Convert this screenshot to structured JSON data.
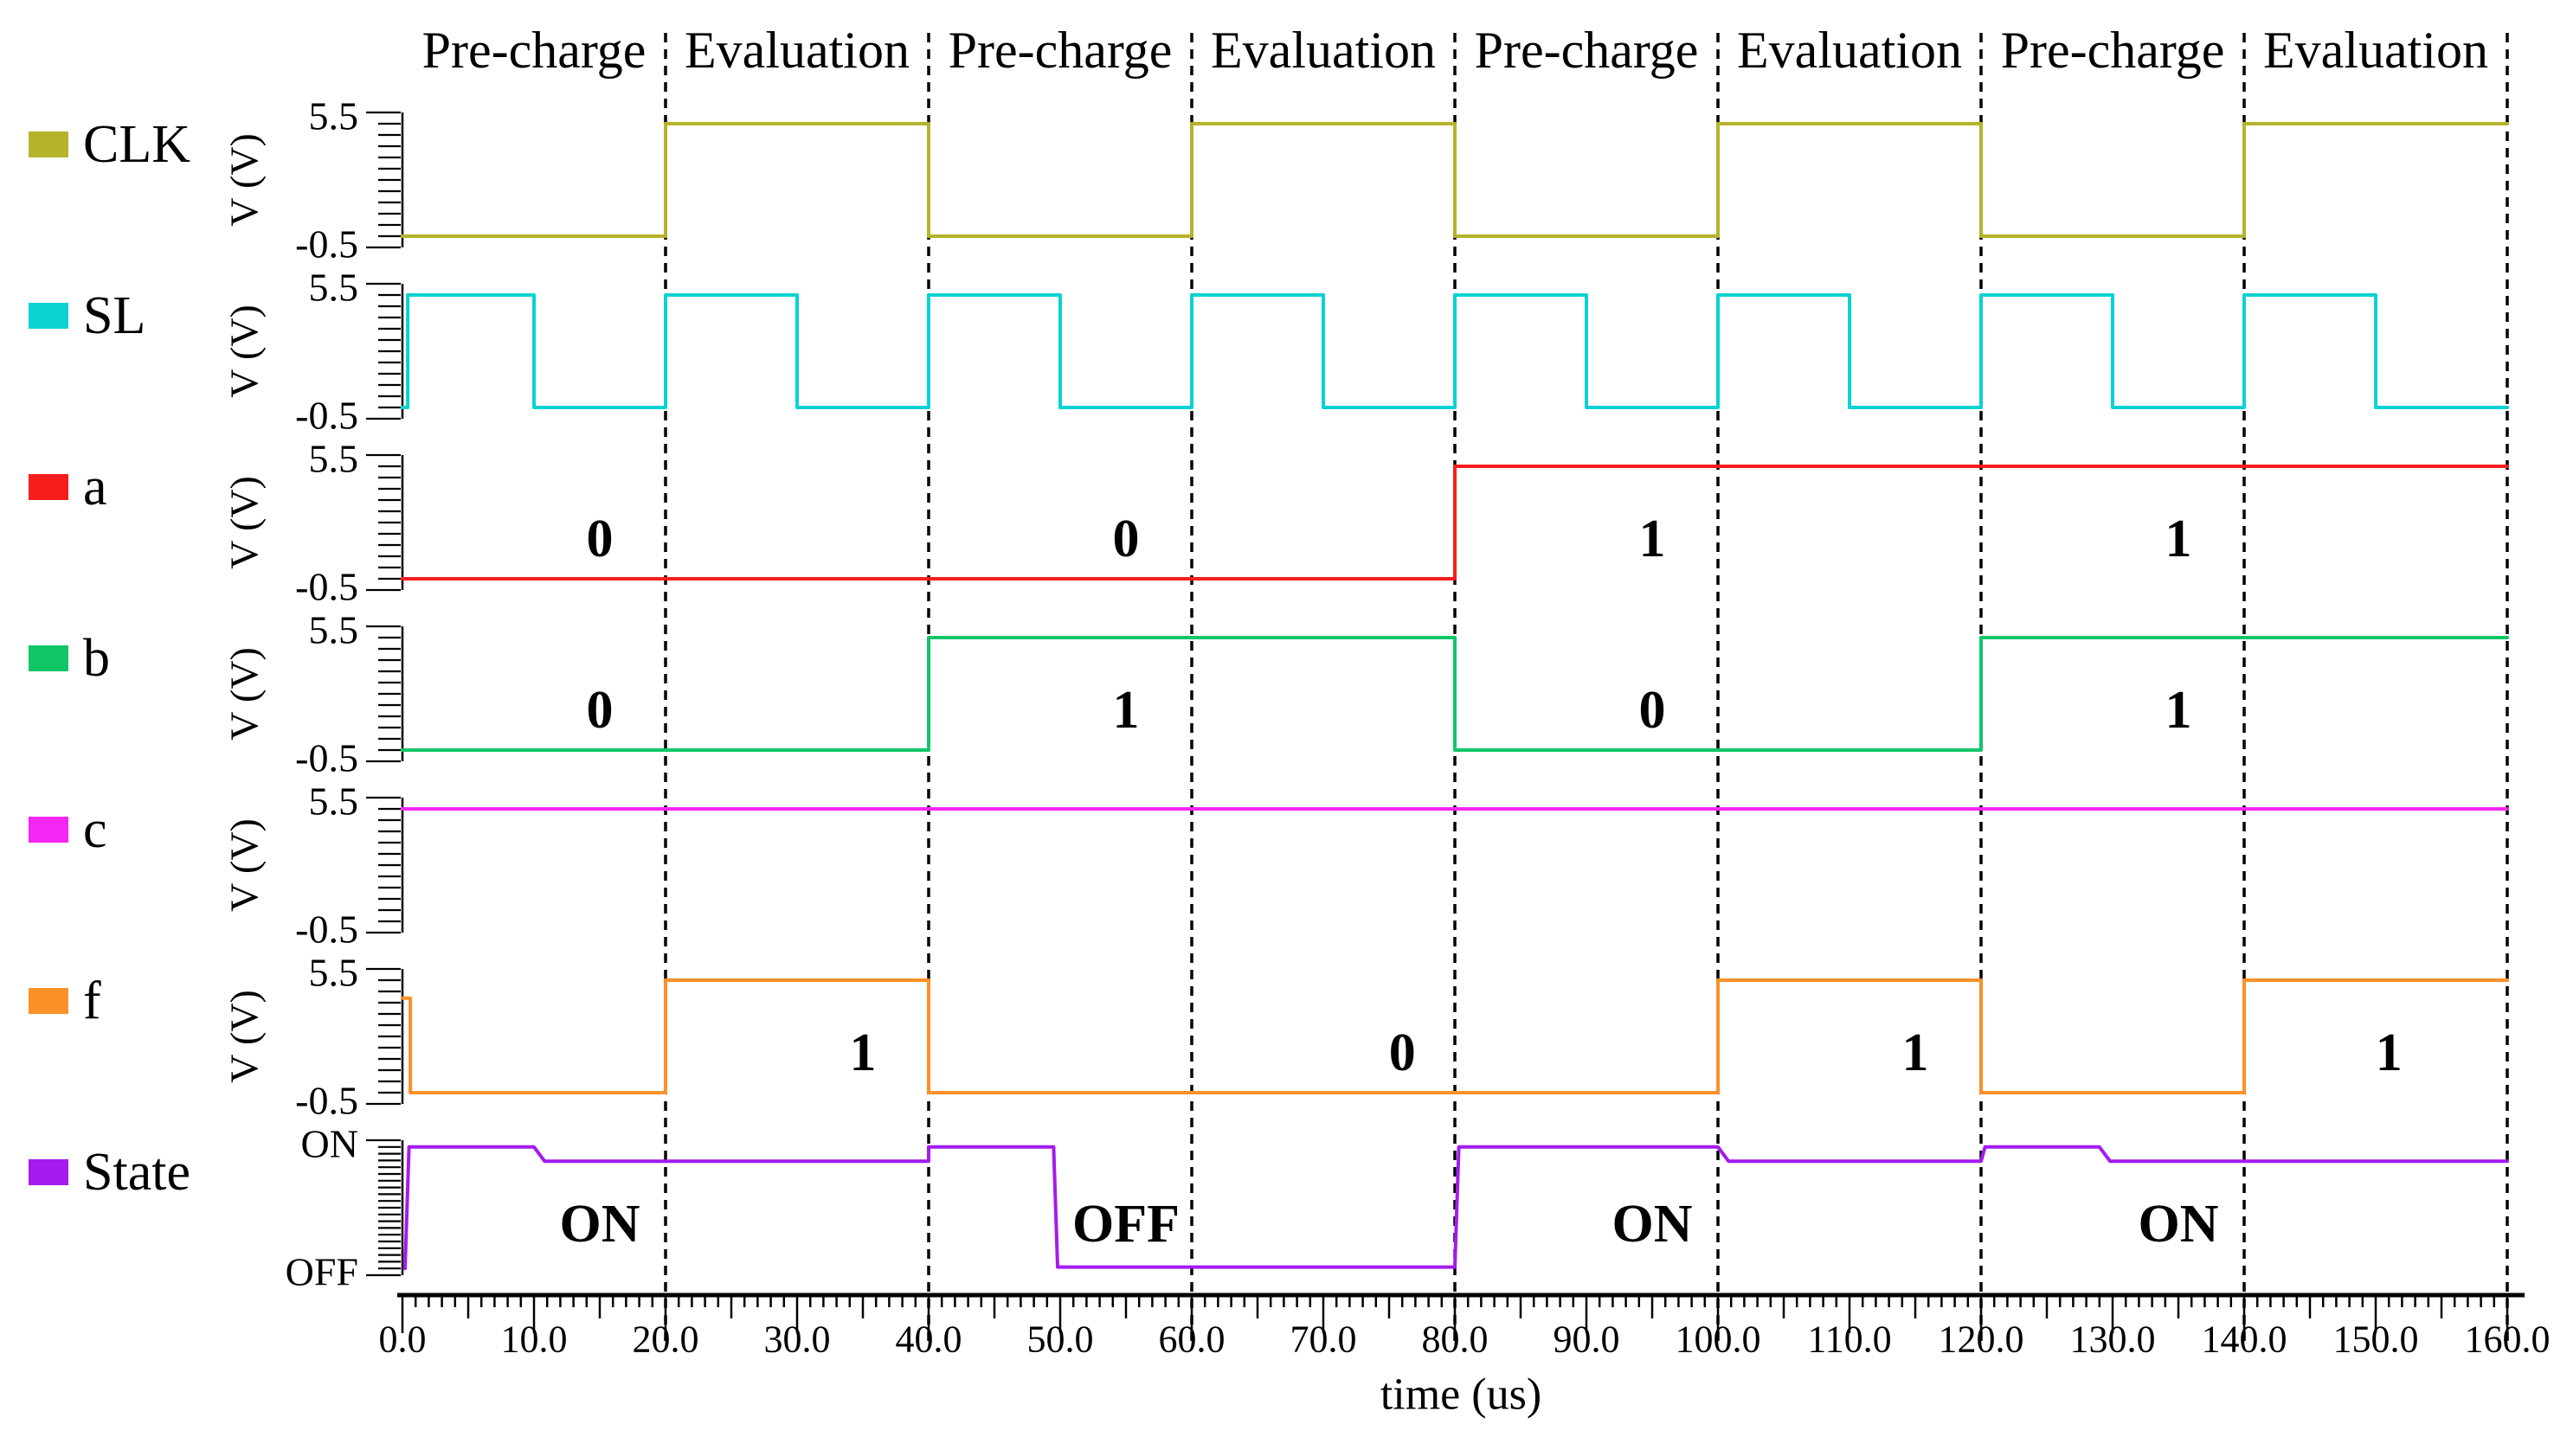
{
  "chart_data": {
    "type": "line",
    "description": "Digital timing waveform diagram with alternating pre-charge and evaluation phases",
    "x_axis": {
      "label": "time (us)",
      "min": 0,
      "max": 160,
      "major_tick_step": 10,
      "medium_tick_step": 5,
      "minor_tick_step": 1,
      "tick_labels": [
        "0.0",
        "10.0",
        "20.0",
        "30.0",
        "40.0",
        "50.0",
        "60.0",
        "70.0",
        "80.0",
        "90.0",
        "100.0",
        "110.0",
        "120.0",
        "130.0",
        "140.0",
        "150.0",
        "160.0"
      ]
    },
    "phases": [
      {
        "label": "Pre-charge",
        "start": 0,
        "end": 20
      },
      {
        "label": "Evaluation",
        "start": 20,
        "end": 40
      },
      {
        "label": "Pre-charge",
        "start": 40,
        "end": 60
      },
      {
        "label": "Evaluation",
        "start": 60,
        "end": 80
      },
      {
        "label": "Pre-charge",
        "start": 80,
        "end": 100
      },
      {
        "label": "Evaluation",
        "start": 100,
        "end": 120
      },
      {
        "label": "Pre-charge",
        "start": 120,
        "end": 140
      },
      {
        "label": "Evaluation",
        "start": 140,
        "end": 160
      }
    ],
    "dashed_boundaries": [
      20,
      40,
      60,
      80,
      100,
      120,
      140,
      160
    ],
    "panels": [
      {
        "name": "CLK",
        "color": "#b5b32b",
        "y_axis_label": "V (V)",
        "y_max_label": "5.5",
        "y_min_label": "-0.5",
        "ymin": -0.5,
        "ymax": 5.5,
        "minor_tick_count": 12,
        "wave": [
          [
            0,
            0
          ],
          [
            20,
            0
          ],
          [
            20,
            5
          ],
          [
            40,
            5
          ],
          [
            40,
            0
          ],
          [
            60,
            0
          ],
          [
            60,
            5
          ],
          [
            80,
            5
          ],
          [
            80,
            0
          ],
          [
            100,
            0
          ],
          [
            100,
            5
          ],
          [
            120,
            5
          ],
          [
            120,
            0
          ],
          [
            140,
            0
          ],
          [
            140,
            5
          ],
          [
            160,
            5
          ]
        ],
        "annotations": []
      },
      {
        "name": "SL",
        "color": "#0ad2d2",
        "y_axis_label": "V (V)",
        "y_max_label": "5.5",
        "y_min_label": "-0.5",
        "ymin": -0.5,
        "ymax": 5.5,
        "minor_tick_count": 12,
        "wave": [
          [
            0,
            0
          ],
          [
            0.4,
            0
          ],
          [
            0.4,
            5
          ],
          [
            10,
            5
          ],
          [
            10,
            0
          ],
          [
            20,
            0
          ],
          [
            20,
            5
          ],
          [
            30,
            5
          ],
          [
            30,
            0
          ],
          [
            40,
            0
          ],
          [
            40,
            5
          ],
          [
            50,
            5
          ],
          [
            50,
            0
          ],
          [
            60,
            0
          ],
          [
            60,
            5
          ],
          [
            70,
            5
          ],
          [
            70,
            0
          ],
          [
            80,
            0
          ],
          [
            80,
            5
          ],
          [
            90,
            5
          ],
          [
            90,
            0
          ],
          [
            100,
            0
          ],
          [
            100,
            5
          ],
          [
            110,
            5
          ],
          [
            110,
            0
          ],
          [
            120,
            0
          ],
          [
            120,
            5
          ],
          [
            130,
            5
          ],
          [
            130,
            0
          ],
          [
            140,
            0
          ],
          [
            140,
            5
          ],
          [
            150,
            5
          ],
          [
            150,
            0
          ],
          [
            160,
            0
          ]
        ],
        "annotations": []
      },
      {
        "name": "a",
        "color": "#f81d1d",
        "y_axis_label": "V (V)",
        "y_max_label": "5.5",
        "y_min_label": "-0.5",
        "ymin": -0.5,
        "ymax": 5.5,
        "minor_tick_count": 12,
        "wave": [
          [
            0,
            0
          ],
          [
            80,
            0
          ],
          [
            80,
            5
          ],
          [
            160,
            5
          ]
        ],
        "annotations": [
          {
            "t": 15,
            "text": "0"
          },
          {
            "t": 55,
            "text": "0"
          },
          {
            "t": 95,
            "text": "1"
          },
          {
            "t": 135,
            "text": "1"
          }
        ]
      },
      {
        "name": "b",
        "color": "#12c668",
        "y_axis_label": "V (V)",
        "y_max_label": "5.5",
        "y_min_label": "-0.5",
        "ymin": -0.5,
        "ymax": 5.5,
        "minor_tick_count": 12,
        "wave": [
          [
            0,
            0
          ],
          [
            40,
            0
          ],
          [
            40,
            5
          ],
          [
            80,
            5
          ],
          [
            80,
            0
          ],
          [
            120,
            0
          ],
          [
            120,
            5
          ],
          [
            160,
            5
          ]
        ],
        "annotations": [
          {
            "t": 15,
            "text": "0"
          },
          {
            "t": 55,
            "text": "1"
          },
          {
            "t": 95,
            "text": "0"
          },
          {
            "t": 135,
            "text": "1"
          }
        ]
      },
      {
        "name": "c",
        "color": "#f326f3",
        "y_axis_label": "V (V)",
        "y_max_label": "5.5",
        "y_min_label": "-0.5",
        "ymin": -0.5,
        "ymax": 5.5,
        "minor_tick_count": 12,
        "wave": [
          [
            0,
            5
          ],
          [
            160,
            5
          ]
        ],
        "annotations": []
      },
      {
        "name": "f",
        "color": "#fb9128",
        "y_axis_label": "V (V)",
        "y_max_label": "5.5",
        "y_min_label": "-0.5",
        "ymin": -0.5,
        "ymax": 5.5,
        "minor_tick_count": 12,
        "wave": [
          [
            0,
            4.2
          ],
          [
            0.6,
            4.2
          ],
          [
            0.6,
            0
          ],
          [
            20,
            0
          ],
          [
            20,
            5
          ],
          [
            40,
            5
          ],
          [
            40,
            0
          ],
          [
            100,
            0
          ],
          [
            100,
            5
          ],
          [
            120,
            5
          ],
          [
            120,
            0
          ],
          [
            140,
            0
          ],
          [
            140,
            5
          ],
          [
            160,
            5
          ]
        ],
        "annotations": [
          {
            "t": 35,
            "text": "1"
          },
          {
            "t": 76,
            "text": "0"
          },
          {
            "t": 115,
            "text": "1"
          },
          {
            "t": 151,
            "text": "1"
          }
        ]
      },
      {
        "name": "State",
        "color": "#a31bef",
        "y_axis_label": "",
        "y_max_label": "ON",
        "y_min_label": "OFF",
        "ymin": 0,
        "ymax": 1,
        "minor_tick_count": 20,
        "wave": [
          [
            0.2,
            0.05
          ],
          [
            0.5,
            0.95
          ],
          [
            10,
            0.95
          ],
          [
            10.8,
            0.845
          ],
          [
            40,
            0.845
          ],
          [
            40,
            0.95
          ],
          [
            49.5,
            0.95
          ],
          [
            49.8,
            0.06
          ],
          [
            80,
            0.06
          ],
          [
            80.3,
            0.95
          ],
          [
            100,
            0.95
          ],
          [
            100.8,
            0.845
          ],
          [
            120,
            0.845
          ],
          [
            120.3,
            0.95
          ],
          [
            129,
            0.95
          ],
          [
            129.8,
            0.845
          ],
          [
            160,
            0.845
          ]
        ],
        "annotations": [
          {
            "t": 15,
            "text": "ON"
          },
          {
            "t": 55,
            "text": "OFF"
          },
          {
            "t": 95,
            "text": "ON"
          },
          {
            "t": 135,
            "text": "ON"
          }
        ]
      }
    ],
    "layout_hints": {
      "grid": "off",
      "legend_position": "left",
      "phase_boundary_style": "black dashed vertical lines",
      "annotation_style": "bold black serif"
    }
  }
}
